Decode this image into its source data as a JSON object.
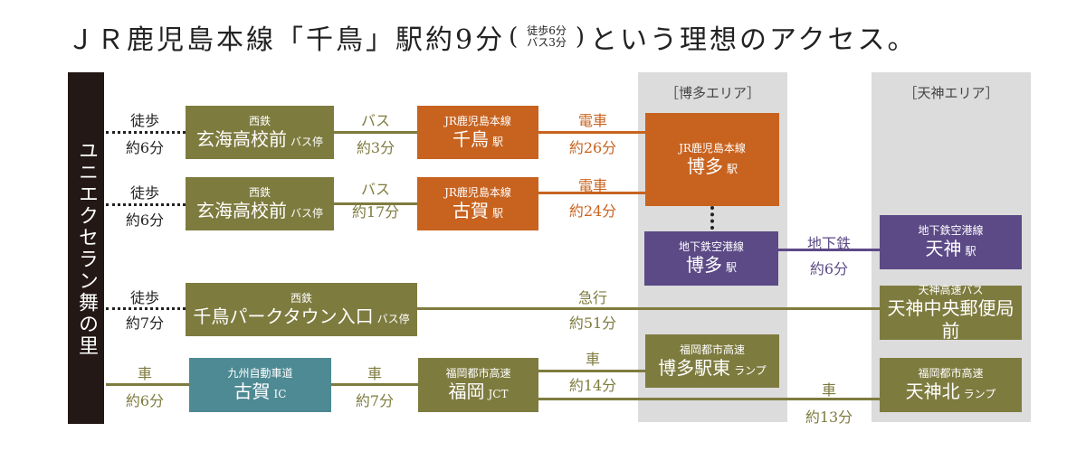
{
  "title": {
    "main_a": "ＪＲ鹿児島本線「千鳥」駅約9分",
    "paren_open": "(",
    "sub_line1": "徒歩6分",
    "sub_line2": "バス3分",
    "paren_close": ")",
    "main_b": "という理想のアクセス。"
  },
  "origin": "ユニエクセラン舞の里",
  "areas": {
    "hakata": "［博多エリア］",
    "tenjin": "［天神エリア］"
  },
  "routes": {
    "r1": {
      "walk_mode": "徒歩",
      "walk_time": "約6分",
      "stop_top": "西鉄",
      "stop_name": "玄海高校前",
      "stop_suffix": "バス停",
      "bus_mode": "バス",
      "bus_time": "約3分",
      "station_top": "JR鹿児島本線",
      "station_name": "千鳥",
      "station_suffix": "駅",
      "train_mode": "電車",
      "train_time": "約26分"
    },
    "r2": {
      "walk_mode": "徒歩",
      "walk_time": "約6分",
      "stop_top": "西鉄",
      "stop_name": "玄海高校前",
      "stop_suffix": "バス停",
      "bus_mode": "バス",
      "bus_time": "約17分",
      "station_top": "JR鹿児島本線",
      "station_name": "古賀",
      "station_suffix": "駅",
      "train_mode": "電車",
      "train_time": "約24分"
    },
    "r3": {
      "walk_mode": "徒歩",
      "walk_time": "約7分",
      "stop_top": "西鉄",
      "stop_name": "千鳥パークタウン入口",
      "stop_suffix": "バス停",
      "bus_mode": "急行",
      "bus_time": "約51分"
    },
    "r4": {
      "car_mode": "車",
      "car_time": "約6分",
      "ic_top": "九州自動車道",
      "ic_name": "古賀",
      "ic_suffix": "IC",
      "car2_mode": "車",
      "car2_time": "約7分",
      "jct_top": "福岡都市高速",
      "jct_name": "福岡",
      "jct_suffix": "JCT",
      "car3_mode": "車",
      "car3_time": "約14分",
      "car4_mode": "車",
      "car4_time": "約13分"
    }
  },
  "hakata": {
    "jr_top": "JR鹿児島本線",
    "jr_name": "博多",
    "jr_suffix": "駅",
    "sub_top": "地下鉄空港線",
    "sub_name": "博多",
    "sub_suffix": "駅",
    "ramp_top": "福岡都市高速",
    "ramp_name": "博多駅東",
    "ramp_suffix": "ランプ",
    "subway_mode": "地下鉄",
    "subway_time": "約6分"
  },
  "tenjin": {
    "sub_top": "地下鉄空港線",
    "sub_name": "天神",
    "sub_suffix": "駅",
    "bus_top": "天神高速バス",
    "bus_name": "天神中央郵便局前",
    "ramp_top": "福岡都市高速",
    "ramp_name": "天神北",
    "ramp_suffix": "ランプ"
  },
  "colors": {
    "olive": "#7e7b3f",
    "orange": "#c8631f",
    "purple": "#5b4a86",
    "teal": "#4e8a94",
    "dark": "#231815"
  }
}
